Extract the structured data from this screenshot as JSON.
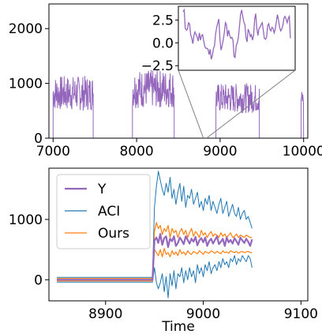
{
  "chart_data": [
    {
      "type": "line",
      "xlim": [
        6950,
        10050
      ],
      "ylim": [
        0,
        2450
      ],
      "xticks": [
        7000,
        8000,
        9000,
        10000
      ],
      "yticks": [
        0,
        1000,
        2000
      ],
      "xtick_labels": [
        "7000",
        "8000",
        "9000",
        "10000"
      ],
      "ytick_labels": [
        "0",
        "1000",
        "2000"
      ],
      "grid": false,
      "series": [
        {
          "color": "#9467bd",
          "segments": [
            {
              "x": [
                7000,
                7000,
                7480,
                7480
              ],
              "level": 820,
              "noise": 200
            },
            {
              "x": [
                7950,
                7950,
                8450,
                8450
              ],
              "level": 900,
              "noise": 220
            },
            {
              "x": [
                8950,
                8950,
                9470,
                9470
              ],
              "level": 730,
              "noise": 170
            },
            {
              "x": [
                9970,
                9970,
                10000,
                10000
              ],
              "level": 720,
              "noise": 100
            }
          ],
          "baseline": 0
        }
      ],
      "inset": {
        "xlim": [
          0,
          99
        ],
        "ylim": [
          -3,
          4
        ],
        "yticks": [
          2.5,
          0.0,
          -2.5
        ],
        "ytick_labels": [
          "2.5",
          "0.0",
          "−2.5"
        ],
        "values": [
          3.4,
          3.6,
          1.6,
          1.4,
          1.5,
          2.2,
          2.1,
          0.9,
          0.5,
          -0.1,
          0.8,
          1.2,
          0.9,
          0.6,
          0.2,
          1.1,
          0.3,
          0.8,
          0.9,
          0.2,
          -0.4,
          -0.6,
          -0.6,
          -0.7,
          -1.3,
          -0.7,
          -1.8,
          -1.4,
          -0.6,
          -0.3,
          1.0,
          1.7,
          2.2,
          2.6,
          0.4,
          -0.8,
          -0.3,
          0.3,
          1.1,
          2.2,
          2.0,
          0.7,
          1.4,
          0.8,
          0.5,
          0.6,
          0.3,
          -1.5,
          -1.6,
          -0.3,
          0.0,
          0.6,
          1.8,
          3.1,
          3.6,
          2.9,
          2.3,
          2.0,
          0.6,
          0.1,
          1.5,
          1.2,
          0.7,
          0.9,
          0.3,
          0.8,
          2.6,
          3.2,
          1.6,
          0.8,
          1.6,
          1.7,
          2.0,
          2.2,
          1.3,
          0.5,
          0.4,
          0.6,
          1.9,
          2.1,
          1.5,
          1.3,
          1.7,
          1.6,
          1.1,
          1.5,
          2.3,
          3.1,
          2.5,
          1.7,
          1.3,
          1.5,
          1.9,
          2.7,
          2.9,
          2.6,
          2.2,
          2.7,
          2.9,
          0.5
        ],
        "zoom_from": [
          8800,
          0
        ]
      }
    },
    {
      "type": "line",
      "xlabel": "Time",
      "xlim": [
        8842,
        9107
      ],
      "ylim": [
        -350,
        1850
      ],
      "xticks": [
        8900,
        9000,
        9100
      ],
      "yticks": [
        0,
        1000
      ],
      "xtick_labels": [
        "8900",
        "9000",
        "9100"
      ],
      "ytick_labels": [
        "0",
        "1000"
      ],
      "grid": false,
      "legend": "top-left",
      "x_start": 8850,
      "x_step": 2,
      "series": [
        {
          "name": "Y",
          "color": "#9467bd",
          "role": "y"
        },
        {
          "name": "ACI",
          "color": "#1f77b4",
          "role": "aci"
        },
        {
          "name": "Ours",
          "color": "#ff7f0e",
          "role": "ours"
        }
      ],
      "y_values": [
        0,
        0,
        0,
        0,
        0,
        0,
        0,
        0,
        0,
        0,
        0,
        0,
        0,
        0,
        0,
        0,
        0,
        0,
        0,
        0,
        0,
        0,
        0,
        0,
        0,
        0,
        0,
        0,
        0,
        0,
        0,
        0,
        0,
        0,
        0,
        0,
        0,
        0,
        0,
        0,
        0,
        0,
        0,
        0,
        0,
        0,
        0,
        0,
        0,
        0,
        650,
        700,
        610,
        760,
        580,
        690,
        720,
        540,
        680,
        640,
        720,
        560,
        610,
        700,
        650,
        590,
        720,
        660,
        600,
        680,
        630,
        710,
        570,
        650,
        690,
        620,
        700,
        560,
        640,
        680,
        600,
        660,
        720,
        590,
        630,
        680,
        560,
        700,
        620,
        660,
        600,
        690,
        640,
        580,
        700,
        650,
        610,
        680,
        630,
        560,
        670
      ],
      "aci_upper": [
        40,
        40,
        40,
        40,
        40,
        40,
        40,
        40,
        40,
        40,
        40,
        40,
        40,
        40,
        40,
        40,
        40,
        40,
        40,
        40,
        40,
        40,
        40,
        40,
        40,
        40,
        40,
        40,
        40,
        40,
        40,
        40,
        40,
        40,
        40,
        40,
        40,
        40,
        40,
        40,
        40,
        40,
        40,
        40,
        40,
        40,
        40,
        40,
        40,
        40,
        1200,
        1550,
        1800,
        1650,
        1500,
        1400,
        1600,
        1450,
        1700,
        1350,
        1500,
        1250,
        1450,
        1600,
        1300,
        1550,
        1200,
        1400,
        1350,
        1500,
        1250,
        1350,
        1450,
        1200,
        1300,
        1150,
        1350,
        1250,
        1400,
        1150,
        1300,
        1200,
        1100,
        1250,
        1350,
        1100,
        1200,
        1300,
        1050,
        1150,
        1250,
        1100,
        1050,
        1200,
        1000,
        1100,
        1150,
        1000,
        1050,
        950,
        850
      ],
      "aci_lower": [
        -40,
        -40,
        -40,
        -40,
        -40,
        -40,
        -40,
        -40,
        -40,
        -40,
        -40,
        -40,
        -40,
        -40,
        -40,
        -40,
        -40,
        -40,
        -40,
        -40,
        -40,
        -40,
        -40,
        -40,
        -40,
        -40,
        -40,
        -40,
        -40,
        -40,
        -40,
        -40,
        -40,
        -40,
        -40,
        -40,
        -40,
        -40,
        -40,
        -40,
        -40,
        -40,
        -40,
        -40,
        -40,
        -40,
        -40,
        -40,
        -40,
        -40,
        200,
        -50,
        -150,
        -50,
        100,
        -200,
        50,
        -300,
        100,
        -100,
        150,
        -150,
        100,
        50,
        200,
        -50,
        150,
        0,
        200,
        50,
        150,
        -50,
        250,
        100,
        200,
        50,
        250,
        150,
        300,
        100,
        200,
        250,
        150,
        300,
        200,
        350,
        250,
        300,
        200,
        350,
        300,
        400,
        250,
        350,
        300,
        400,
        350,
        300,
        400,
        350,
        200
      ],
      "ours_upper": [
        20,
        20,
        20,
        20,
        20,
        20,
        20,
        20,
        20,
        20,
        20,
        20,
        20,
        20,
        20,
        20,
        20,
        20,
        20,
        20,
        20,
        20,
        20,
        20,
        20,
        20,
        20,
        20,
        20,
        20,
        20,
        20,
        20,
        20,
        20,
        20,
        20,
        20,
        20,
        20,
        20,
        20,
        20,
        20,
        20,
        20,
        20,
        20,
        20,
        20,
        800,
        950,
        850,
        900,
        750,
        850,
        800,
        900,
        700,
        850,
        780,
        820,
        700,
        800,
        850,
        750,
        820,
        700,
        780,
        850,
        720,
        800,
        760,
        700,
        820,
        740,
        780,
        700,
        760,
        800,
        720,
        760,
        740,
        700,
        780,
        720,
        760,
        700,
        740,
        780,
        700,
        720,
        760,
        700,
        740,
        720,
        700,
        740,
        720,
        700,
        700
      ],
      "ours_lower": [
        -20,
        -20,
        -20,
        -20,
        -20,
        -20,
        -20,
        -20,
        -20,
        -20,
        -20,
        -20,
        -20,
        -20,
        -20,
        -20,
        -20,
        -20,
        -20,
        -20,
        -20,
        -20,
        -20,
        -20,
        -20,
        -20,
        -20,
        -20,
        -20,
        -20,
        -20,
        -20,
        -20,
        -20,
        -20,
        -20,
        -20,
        -20,
        -20,
        -20,
        -20,
        -20,
        -20,
        -20,
        -20,
        -20,
        -20,
        -20,
        -20,
        -20,
        500,
        450,
        400,
        500,
        380,
        520,
        420,
        450,
        380,
        480,
        420,
        460,
        400,
        500,
        430,
        460,
        410,
        480,
        440,
        420,
        470,
        450,
        430,
        480,
        450,
        420,
        470,
        450,
        440,
        480,
        460,
        440,
        470,
        450,
        430,
        480,
        450,
        460,
        440,
        480,
        460,
        450,
        470,
        440,
        460,
        470,
        450,
        460,
        470,
        450,
        450
      ]
    }
  ]
}
